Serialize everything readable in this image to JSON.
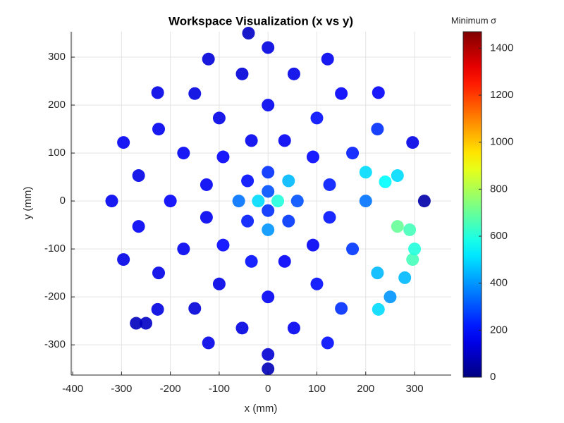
{
  "chart_data": {
    "type": "scatter",
    "title": "Workspace Visualization (x vs y)",
    "x_label": "x (mm)",
    "y_label": "y (mm)",
    "colorbar_label": "Minimum σ",
    "colormap": "jet",
    "grid": true,
    "xlim": [
      -403,
      375
    ],
    "ylim": [
      -363,
      353
    ],
    "xticks": [
      -400,
      -300,
      -200,
      -100,
      0,
      100,
      200,
      300
    ],
    "yticks": [
      -300,
      -200,
      -100,
      0,
      100,
      200,
      300
    ],
    "clim": [
      0,
      1470
    ],
    "cticks": [
      0,
      200,
      400,
      600,
      800,
      1000,
      1200,
      1400
    ],
    "x": [
      320,
      296,
      226,
      122,
      0,
      -122,
      -226,
      -296,
      -320,
      -296,
      -226,
      -122,
      0,
      122,
      226,
      296,
      265,
      224,
      150,
      53,
      -53,
      -150,
      -224,
      -265,
      -265,
      -224,
      -150,
      -53,
      53,
      150,
      224,
      265,
      200,
      173,
      100,
      0,
      -100,
      -173,
      -200,
      -173,
      -100,
      0,
      100,
      173,
      126,
      92,
      34,
      -34,
      -92,
      -126,
      -126,
      -92,
      -34,
      34,
      92,
      126,
      60,
      42,
      0,
      -42,
      -60,
      -42,
      0,
      42,
      20,
      0,
      -20,
      0,
      290,
      300,
      280,
      250,
      200,
      240,
      -250,
      -270,
      -40,
      0
    ],
    "values": [
      0,
      122,
      226,
      296,
      320,
      296,
      226,
      122,
      0,
      -122,
      -226,
      -296,
      -320,
      -296,
      -226,
      -122,
      53,
      150,
      224,
      265,
      265,
      224,
      150,
      53,
      -53,
      -150,
      -224,
      -265,
      -265,
      -224,
      -150,
      -53,
      0,
      100,
      173,
      200,
      173,
      100,
      0,
      -100,
      -173,
      -200,
      -173,
      -100,
      34,
      92,
      126,
      126,
      92,
      34,
      -34,
      -92,
      -126,
      -126,
      -92,
      -34,
      0,
      42,
      60,
      42,
      0,
      -42,
      -60,
      -42,
      0,
      20,
      0,
      -20,
      -60,
      -100,
      -160,
      -200,
      60,
      40,
      -255,
      -255,
      350,
      -350
    ],
    "color_values": [
      60,
      150,
      180,
      160,
      140,
      130,
      150,
      170,
      160,
      150,
      140,
      150,
      120,
      200,
      500,
      650,
      500,
      250,
      180,
      150,
      130,
      140,
      160,
      150,
      170,
      150,
      130,
      140,
      160,
      250,
      450,
      700,
      350,
      220,
      200,
      160,
      150,
      170,
      180,
      160,
      150,
      170,
      200,
      260,
      220,
      190,
      170,
      160,
      180,
      170,
      160,
      190,
      200,
      180,
      170,
      210,
      300,
      450,
      250,
      200,
      350,
      220,
      400,
      260,
      600,
      300,
      500,
      250,
      650,
      600,
      450,
      400,
      500,
      550,
      100,
      90,
      100,
      80
    ]
  }
}
